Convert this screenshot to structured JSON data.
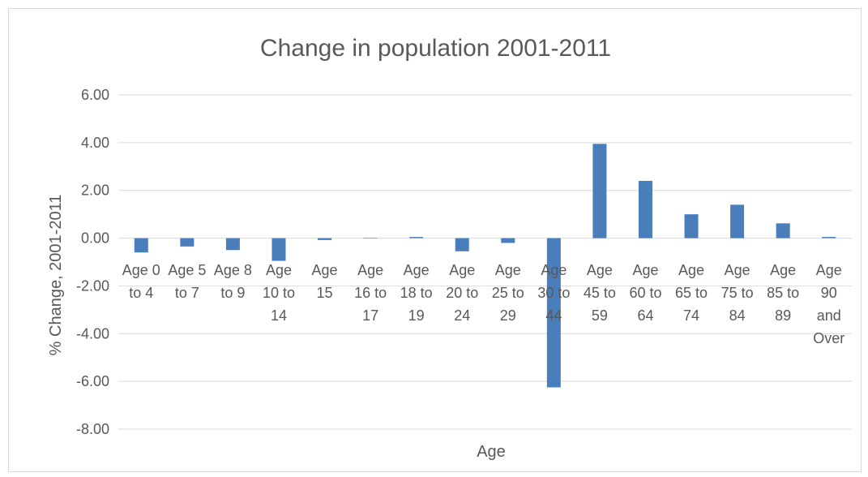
{
  "chart_data": {
    "type": "bar",
    "title": "Change in population 2001-2011",
    "xlabel": "Age",
    "ylabel": "% Change, 2001-2011",
    "ylim": [
      -8,
      6
    ],
    "yticks": [
      "6.00",
      "4.00",
      "2.00",
      "0.00",
      "-2.00",
      "-4.00",
      "-6.00",
      "-8.00"
    ],
    "ytick_values": [
      6,
      4,
      2,
      0,
      -2,
      -4,
      -6,
      -8
    ],
    "grid": true,
    "categories": [
      "Age 0 to 4",
      "Age 5 to 7",
      "Age 8 to 9",
      "Age 10 to 14",
      "Age 15",
      "Age 16 to 17",
      "Age 18 to 19",
      "Age 20 to 24",
      "Age 25 to 29",
      "Age 30 to 44",
      "Age 45 to 59",
      "Age 60 to 64",
      "Age 65 to 74",
      "Age 75 to 84",
      "Age 85 to 89",
      "Age 90 and Over"
    ],
    "category_label_lines": [
      [
        "Age 0",
        "to 4"
      ],
      [
        "Age 5",
        "to 7"
      ],
      [
        "Age 8",
        "to 9"
      ],
      [
        "Age",
        "10 to",
        "14"
      ],
      [
        "Age",
        "15"
      ],
      [
        "Age",
        "16 to",
        "17"
      ],
      [
        "Age",
        "18 to",
        "19"
      ],
      [
        "Age",
        "20 to",
        "24"
      ],
      [
        "Age",
        "25 to",
        "29"
      ],
      [
        "Age",
        "30 to",
        "44"
      ],
      [
        "Age",
        "45 to",
        "59"
      ],
      [
        "Age",
        "60 to",
        "64"
      ],
      [
        "Age",
        "65 to",
        "74"
      ],
      [
        "Age",
        "75 to",
        "84"
      ],
      [
        "Age",
        "85 to",
        "89"
      ],
      [
        "Age",
        "90",
        "and",
        "Over"
      ]
    ],
    "values": [
      -0.6,
      -0.35,
      -0.5,
      -0.95,
      -0.08,
      0.02,
      0.05,
      -0.55,
      -0.2,
      -6.25,
      3.95,
      2.4,
      1.0,
      1.4,
      0.62,
      0.05
    ],
    "bar_color": "#4a7ebb"
  }
}
